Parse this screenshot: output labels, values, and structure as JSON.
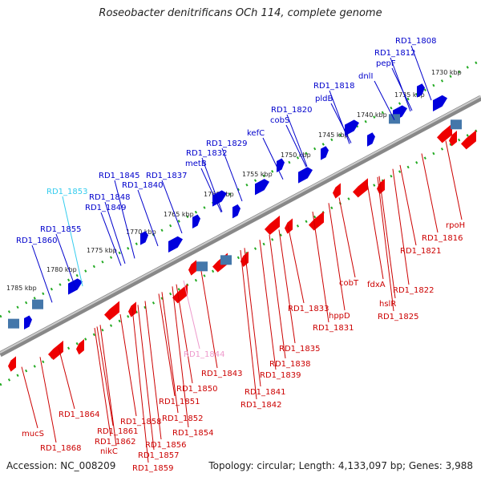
{
  "title": "Roseobacter denitrificans OCh 114, complete genome",
  "footer": {
    "accession": "Accession: NC_008209",
    "summary": "Topology: circular; Length: 4,133,097 bp; Genes: 3,988"
  },
  "colors": {
    "forward": "#0000dd",
    "reverse": "#ee0000",
    "highlight": "#33ccee",
    "pink": "#ee99cc",
    "backbone": "#888888",
    "tick": "#22aa22"
  },
  "scale_ticks": [
    "1785 kbp",
    "1780 kbp",
    "1775 kbp",
    "1770 kbp",
    "1765 kbp",
    "1760 kbp",
    "1755 kbp",
    "1750 kbp",
    "1745 kbp",
    "1740 kbp",
    "1735 kbp",
    "1730 kbp"
  ],
  "forward_labels": [
    {
      "text": "RD1_1860",
      "color": "#0000cc"
    },
    {
      "text": "RD1_1855",
      "color": "#0000cc"
    },
    {
      "text": "RD1_1853",
      "color": "#33ccee"
    },
    {
      "text": "RD1_1849",
      "color": "#0000cc"
    },
    {
      "text": "RD1_1848",
      "color": "#0000cc"
    },
    {
      "text": "RD1_1845",
      "color": "#0000cc"
    },
    {
      "text": "RD1_1840",
      "color": "#0000cc"
    },
    {
      "text": "RD1_1837",
      "color": "#0000cc"
    },
    {
      "text": "metB",
      "color": "#0000cc"
    },
    {
      "text": "RD1_1832",
      "color": "#0000cc"
    },
    {
      "text": "RD1_1829",
      "color": "#0000cc"
    },
    {
      "text": "kefC",
      "color": "#0000cc"
    },
    {
      "text": "cobS",
      "color": "#0000cc"
    },
    {
      "text": "RD1_1820",
      "color": "#0000cc"
    },
    {
      "text": "pldB",
      "color": "#0000cc"
    },
    {
      "text": "RD1_1818",
      "color": "#0000cc"
    },
    {
      "text": "dnlI",
      "color": "#0000cc"
    },
    {
      "text": "pepF",
      "color": "#0000cc"
    },
    {
      "text": "RD1_1812",
      "color": "#0000cc"
    },
    {
      "text": "RD1_1808",
      "color": "#0000cc"
    }
  ],
  "reverse_labels": [
    {
      "text": "rpoH",
      "color": "#cc0000"
    },
    {
      "text": "RD1_1816",
      "color": "#cc0000"
    },
    {
      "text": "RD1_1821",
      "color": "#cc0000"
    },
    {
      "text": "RD1_1822",
      "color": "#cc0000"
    },
    {
      "text": "fdxA",
      "color": "#cc0000"
    },
    {
      "text": "cobT",
      "color": "#cc0000"
    },
    {
      "text": "hslR",
      "color": "#cc0000"
    },
    {
      "text": "RD1_1825",
      "color": "#cc0000"
    },
    {
      "text": "hppD",
      "color": "#cc0000"
    },
    {
      "text": "RD1_1831",
      "color": "#cc0000"
    },
    {
      "text": "RD1_1833",
      "color": "#cc0000"
    },
    {
      "text": "RD1_1835",
      "color": "#cc0000"
    },
    {
      "text": "RD1_1838",
      "color": "#cc0000"
    },
    {
      "text": "RD1_1839",
      "color": "#cc0000"
    },
    {
      "text": "RD1_1844",
      "color": "#ee99cc"
    },
    {
      "text": "RD1_1843",
      "color": "#cc0000"
    },
    {
      "text": "RD1_1841",
      "color": "#cc0000"
    },
    {
      "text": "RD1_1842",
      "color": "#cc0000"
    },
    {
      "text": "RD1_1850",
      "color": "#cc0000"
    },
    {
      "text": "RD1_1851",
      "color": "#cc0000"
    },
    {
      "text": "RD1_1852",
      "color": "#cc0000"
    },
    {
      "text": "RD1_1854",
      "color": "#cc0000"
    },
    {
      "text": "RD1_1856",
      "color": "#cc0000"
    },
    {
      "text": "RD1_1857",
      "color": "#cc0000"
    },
    {
      "text": "RD1_1858",
      "color": "#cc0000"
    },
    {
      "text": "RD1_1859",
      "color": "#cc0000"
    },
    {
      "text": "RD1_1861",
      "color": "#cc0000"
    },
    {
      "text": "RD1_1862",
      "color": "#cc0000"
    },
    {
      "text": "nikC",
      "color": "#cc0000"
    },
    {
      "text": "RD1_1864",
      "color": "#cc0000"
    },
    {
      "text": "mucS",
      "color": "#cc0000"
    },
    {
      "text": "RD1_1868",
      "color": "#cc0000"
    }
  ]
}
